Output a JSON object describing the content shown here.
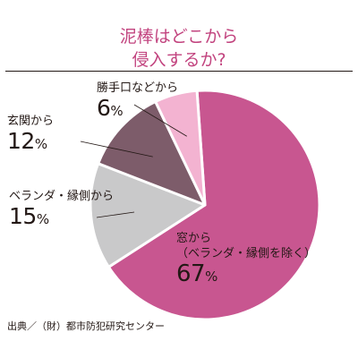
{
  "chart_data": {
    "type": "pie",
    "title_lines": [
      "泥棒はどこから",
      "侵入するか?"
    ],
    "unit": "%",
    "categories": [
      "窓から（ベランダ・縁側を除く）",
      "ベランダ・縁側から",
      "玄関から",
      "勝手口などから"
    ],
    "values": [
      67,
      15,
      12,
      6
    ],
    "label_lines": [
      [
        "窓から",
        "（ベランダ・縁側を除く）"
      ],
      [
        "ベランダ・縁側から"
      ],
      [
        "玄関から"
      ],
      [
        "勝手口などから"
      ]
    ],
    "colors": [
      "#c85690",
      "#c9c9ca",
      "#7d5c6a",
      "#f3b3d1"
    ],
    "title_color": "#c2447f",
    "legend": "none",
    "grid": false
  },
  "source": "出典／（財）都市防犯研究センター"
}
